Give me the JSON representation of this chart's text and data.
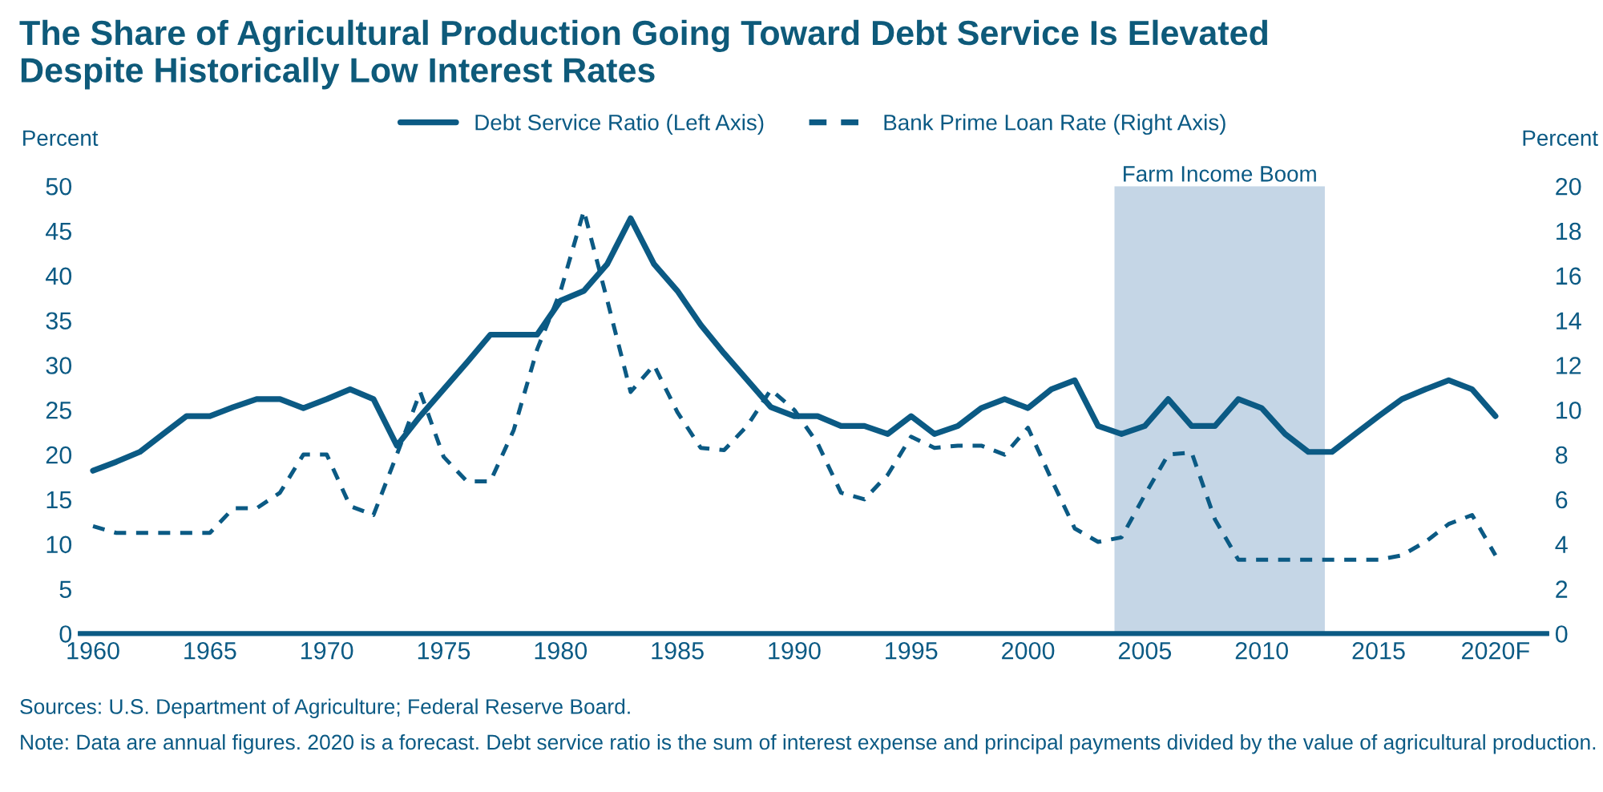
{
  "chart_data": {
    "type": "line",
    "title": "The Share of Agricultural Production Going Toward Debt Service Is Elevated\nDespite Historically Low Interest Rates",
    "ylabel": "Percent",
    "y2label": "Percent",
    "x": [
      1960,
      1961,
      1962,
      1963,
      1964,
      1965,
      1966,
      1967,
      1968,
      1969,
      1970,
      1971,
      1972,
      1973,
      1974,
      1975,
      1976,
      1977,
      1978,
      1979,
      1980,
      1981,
      1982,
      1983,
      1984,
      1985,
      1986,
      1987,
      1988,
      1989,
      1990,
      1991,
      1992,
      1993,
      1994,
      1995,
      1996,
      1997,
      1998,
      1999,
      2000,
      2001,
      2002,
      2003,
      2004,
      2005,
      2006,
      2007,
      2008,
      2009,
      2010,
      2011,
      2012,
      2013,
      2014,
      2015,
      2016,
      2017,
      2018,
      2019,
      2020
    ],
    "series": [
      {
        "name": "Debt Service Ratio (Left Axis)",
        "color": "#0b5a84",
        "line_style": "solid",
        "values": [
          18.2,
          19.2,
          20.3,
          22.3,
          24.3,
          24.3,
          25.3,
          26.2,
          26.2,
          25.2,
          26.2,
          27.3,
          26.2,
          21.0,
          24.3,
          27.3,
          30.3,
          33.4,
          33.4,
          33.4,
          37.2,
          38.3,
          41.3,
          46.4,
          41.3,
          38.3,
          34.5,
          31.3,
          28.3,
          25.3,
          24.3,
          24.3,
          23.2,
          23.2,
          22.3,
          24.3,
          22.3,
          23.2,
          25.2,
          26.2,
          25.2,
          27.3,
          28.3,
          23.2,
          22.3,
          23.2,
          26.2,
          23.2,
          23.2,
          26.2,
          25.2,
          22.3,
          20.3,
          20.3,
          22.3,
          24.3,
          26.2,
          27.3,
          28.3,
          27.3,
          24.3
        ]
      },
      {
        "name": "Bank Prime Loan Rate (Right Axis)",
        "color": "#0b5a84",
        "line_style": "dashed",
        "axis": "y2",
        "values": [
          4.8,
          4.5,
          4.5,
          4.5,
          4.5,
          4.5,
          5.6,
          5.6,
          6.3,
          8.0,
          8.0,
          5.7,
          5.3,
          8.0,
          10.8,
          7.9,
          6.8,
          6.8,
          9.1,
          12.7,
          15.3,
          18.9,
          14.9,
          10.8,
          12.0,
          9.9,
          8.3,
          8.2,
          9.3,
          10.9,
          10.0,
          8.5,
          6.3,
          6.0,
          7.1,
          8.8,
          8.3,
          8.4,
          8.4,
          8.0,
          9.2,
          6.9,
          4.7,
          4.1,
          4.3,
          6.2,
          8.0,
          8.1,
          5.1,
          3.3,
          3.3,
          3.3,
          3.3,
          3.3,
          3.3,
          3.3,
          3.5,
          4.1,
          4.9,
          5.3,
          3.5
        ]
      }
    ],
    "xlim": [
      1959.45,
      2022.2
    ],
    "xticks": [
      1960,
      1965,
      1970,
      1975,
      1980,
      1985,
      1990,
      1995,
      2000,
      2005,
      2010,
      2015,
      {
        "value": 2020,
        "label": "2020F"
      }
    ],
    "ylim": [
      0,
      50
    ],
    "yticks": [
      0,
      5,
      10,
      15,
      20,
      25,
      30,
      35,
      40,
      45,
      50
    ],
    "y2lim": [
      0,
      20
    ],
    "y2ticks": [
      0,
      2,
      4,
      6,
      8,
      10,
      12,
      14,
      16,
      18,
      20
    ],
    "bands": [
      {
        "axis": "x",
        "from": 2003.7,
        "to": 2012.7,
        "label": "Farm Income Boom",
        "color": "#c5d6e6"
      }
    ],
    "legend": "top",
    "grid": false,
    "annotations": [
      "Sources: U.S. Department of Agriculture; Federal Reserve Board.",
      "Note: Data are annual figures. 2020 is a forecast. Debt service ratio is the sum of interest expense and principal payments divided by the value of agricultural production."
    ]
  }
}
